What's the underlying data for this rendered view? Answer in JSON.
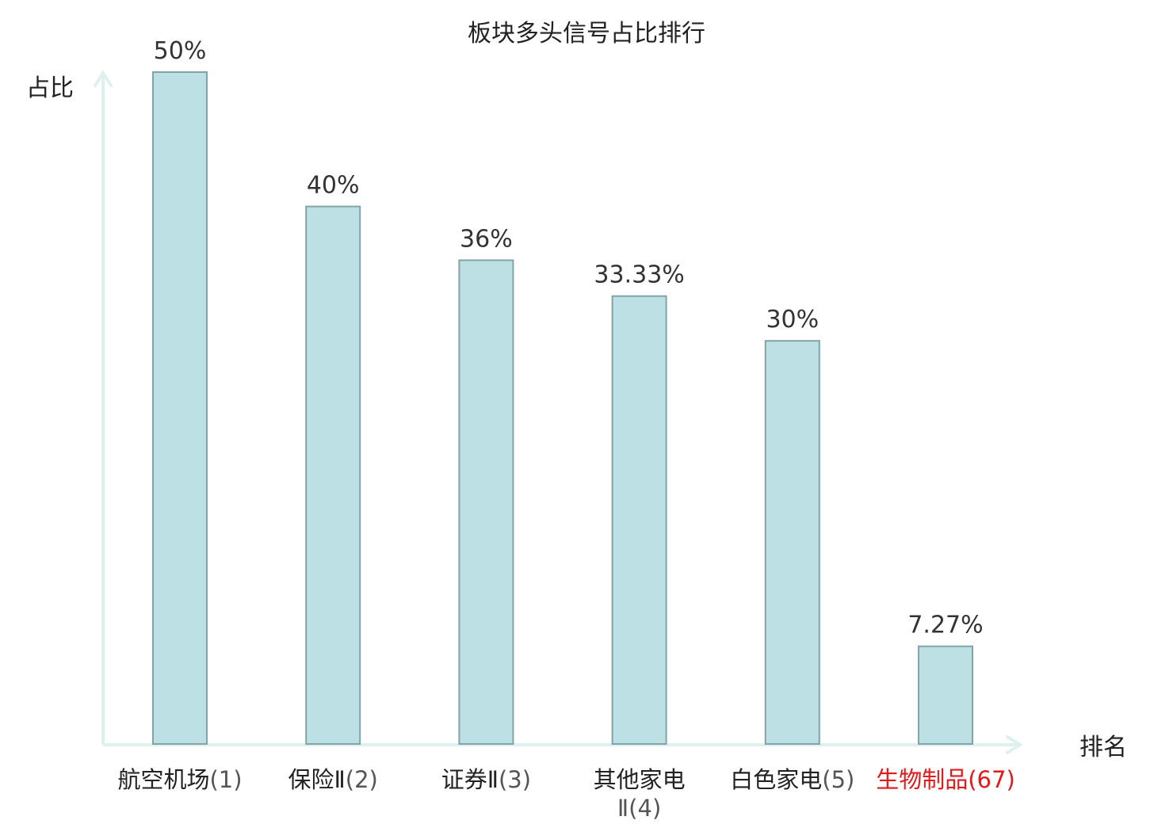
{
  "chart_data": {
    "type": "bar",
    "title": "板块多头信号占比排行",
    "ylabel": "占比",
    "xlabel": "排名",
    "categories": [
      {
        "name": "航空机场",
        "rank": "(1)",
        "highlight": false
      },
      {
        "name": "保险Ⅱ",
        "rank": "(2)",
        "highlight": false
      },
      {
        "name": "证券Ⅱ",
        "rank": "(3)",
        "highlight": false
      },
      {
        "name": "其他家电Ⅱ",
        "rank": "(4)",
        "highlight": false
      },
      {
        "name": "白色家电",
        "rank": "(5)",
        "highlight": false
      },
      {
        "name": "生物制品",
        "rank": "(67)",
        "highlight": true
      }
    ],
    "values": [
      50,
      40,
      36,
      33.33,
      30,
      7.27
    ],
    "value_labels": [
      "50%",
      "40%",
      "36%",
      "33.33%",
      "30%",
      "7.27%"
    ],
    "ylim": [
      0,
      50
    ],
    "grid": false,
    "colors": {
      "bar_fill": "#bce0e3",
      "bar_stroke": "#82a4a8",
      "axis": "#dff1ee",
      "text": "#222222",
      "label_text": "#333333",
      "rank_text": "#555555",
      "highlight": "#e31a1c"
    }
  }
}
